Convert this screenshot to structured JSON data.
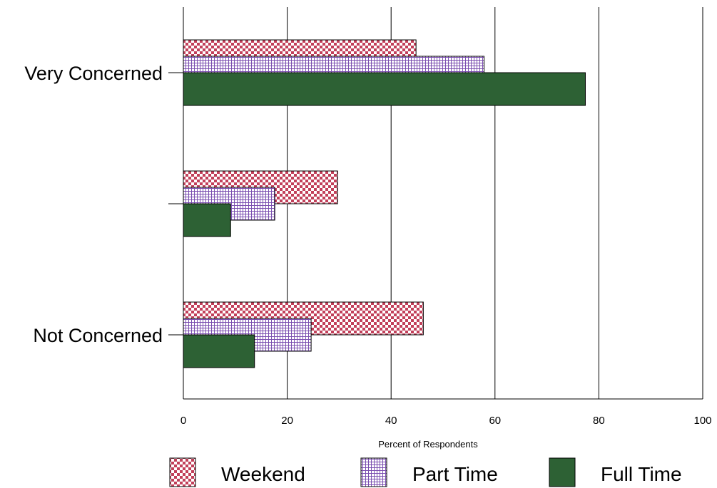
{
  "chart_data": {
    "type": "bar",
    "orientation": "horizontal",
    "categories": [
      "Very Concerned",
      "",
      "Not Concerned"
    ],
    "series": [
      {
        "name": "Weekend",
        "values": [
          44.8,
          29.7,
          46.2
        ],
        "color": "#c2405a",
        "pattern": "checker"
      },
      {
        "name": "Part Time",
        "values": [
          57.9,
          17.6,
          24.6
        ],
        "color": "#7b4fb0",
        "pattern": "grid"
      },
      {
        "name": "Full Time",
        "values": [
          77.4,
          9.1,
          13.7
        ],
        "color": "#2d6134",
        "pattern": "solid"
      }
    ],
    "xlabel": "Percent of Respondents",
    "xlim": [
      0,
      100
    ],
    "xticks": [
      "0",
      "20",
      "40",
      "60",
      "80",
      "100"
    ],
    "grid": "vertical",
    "legend": "bottom"
  }
}
